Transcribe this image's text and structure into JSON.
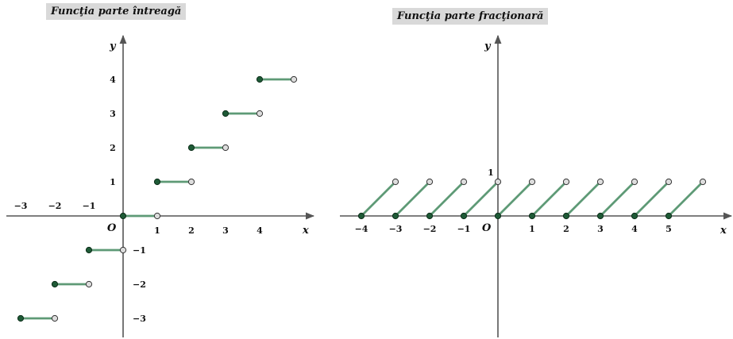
{
  "titles": {
    "left": "Funcţia parte întreagă",
    "right": "Funcţia parte fracţionară"
  },
  "colors": {
    "segment": "#5e9a76",
    "closed_point": "#1e5a36",
    "open_point": "#dddddd",
    "axis": "#555555"
  },
  "chart_data": [
    {
      "type": "line",
      "title": "Funcţia parte întreagă",
      "xlabel": "x",
      "ylabel": "y",
      "origin_label": "O",
      "xlim": [
        -3.4,
        5.5
      ],
      "ylim": [
        -3.6,
        5.0
      ],
      "x_ticks": [
        {
          "v": -3,
          "t": "−3"
        },
        {
          "v": -2,
          "t": "−2"
        },
        {
          "v": -1,
          "t": "−1"
        },
        {
          "v": 1,
          "t": "1"
        },
        {
          "v": 2,
          "t": "2"
        },
        {
          "v": 3,
          "t": "3"
        },
        {
          "v": 4,
          "t": "4"
        }
      ],
      "y_ticks": [
        {
          "v": 4,
          "t": "4"
        },
        {
          "v": 3,
          "t": "3"
        },
        {
          "v": 2,
          "t": "2"
        },
        {
          "v": 1,
          "t": "1"
        },
        {
          "v": -1,
          "t": "−1"
        },
        {
          "v": -2,
          "t": "−2"
        },
        {
          "v": -3,
          "t": "−3"
        }
      ],
      "segments": [
        {
          "x1": -3,
          "y1": -3,
          "x2": -2,
          "y2": -3
        },
        {
          "x1": -2,
          "y1": -2,
          "x2": -1,
          "y2": -2
        },
        {
          "x1": -1,
          "y1": -1,
          "x2": 0,
          "y2": -1
        },
        {
          "x1": 0,
          "y1": 0,
          "x2": 1,
          "y2": 0
        },
        {
          "x1": 1,
          "y1": 1,
          "x2": 2,
          "y2": 1
        },
        {
          "x1": 2,
          "y1": 2,
          "x2": 3,
          "y2": 2
        },
        {
          "x1": 3,
          "y1": 3,
          "x2": 4,
          "y2": 3
        },
        {
          "x1": 4,
          "y1": 4,
          "x2": 5,
          "y2": 4
        }
      ]
    },
    {
      "type": "line",
      "title": "Funcţia parte fracţionară",
      "xlabel": "x",
      "ylabel": "y",
      "origin_label": "O",
      "xlim": [
        -4.6,
        6.8
      ],
      "ylim": [
        -3.5,
        4.8
      ],
      "x_ticks": [
        {
          "v": -4,
          "t": "−4"
        },
        {
          "v": -3,
          "t": "−3"
        },
        {
          "v": -2,
          "t": "−2"
        },
        {
          "v": -1,
          "t": "−1"
        },
        {
          "v": 1,
          "t": "1"
        },
        {
          "v": 2,
          "t": "2"
        },
        {
          "v": 3,
          "t": "3"
        },
        {
          "v": 4,
          "t": "4"
        },
        {
          "v": 5,
          "t": "5"
        }
      ],
      "y_ticks": [
        {
          "v": 1,
          "t": "1"
        }
      ],
      "segments": [
        {
          "x1": -4,
          "y1": 0,
          "x2": -3,
          "y2": 1
        },
        {
          "x1": -3,
          "y1": 0,
          "x2": -2,
          "y2": 1
        },
        {
          "x1": -2,
          "y1": 0,
          "x2": -1,
          "y2": 1
        },
        {
          "x1": -1,
          "y1": 0,
          "x2": 0,
          "y2": 1
        },
        {
          "x1": 0,
          "y1": 0,
          "x2": 1,
          "y2": 1
        },
        {
          "x1": 1,
          "y1": 0,
          "x2": 2,
          "y2": 1
        },
        {
          "x1": 2,
          "y1": 0,
          "x2": 3,
          "y2": 1
        },
        {
          "x1": 3,
          "y1": 0,
          "x2": 4,
          "y2": 1
        },
        {
          "x1": 4,
          "y1": 0,
          "x2": 5,
          "y2": 1
        },
        {
          "x1": 5,
          "y1": 0,
          "x2": 6,
          "y2": 1
        }
      ]
    }
  ]
}
